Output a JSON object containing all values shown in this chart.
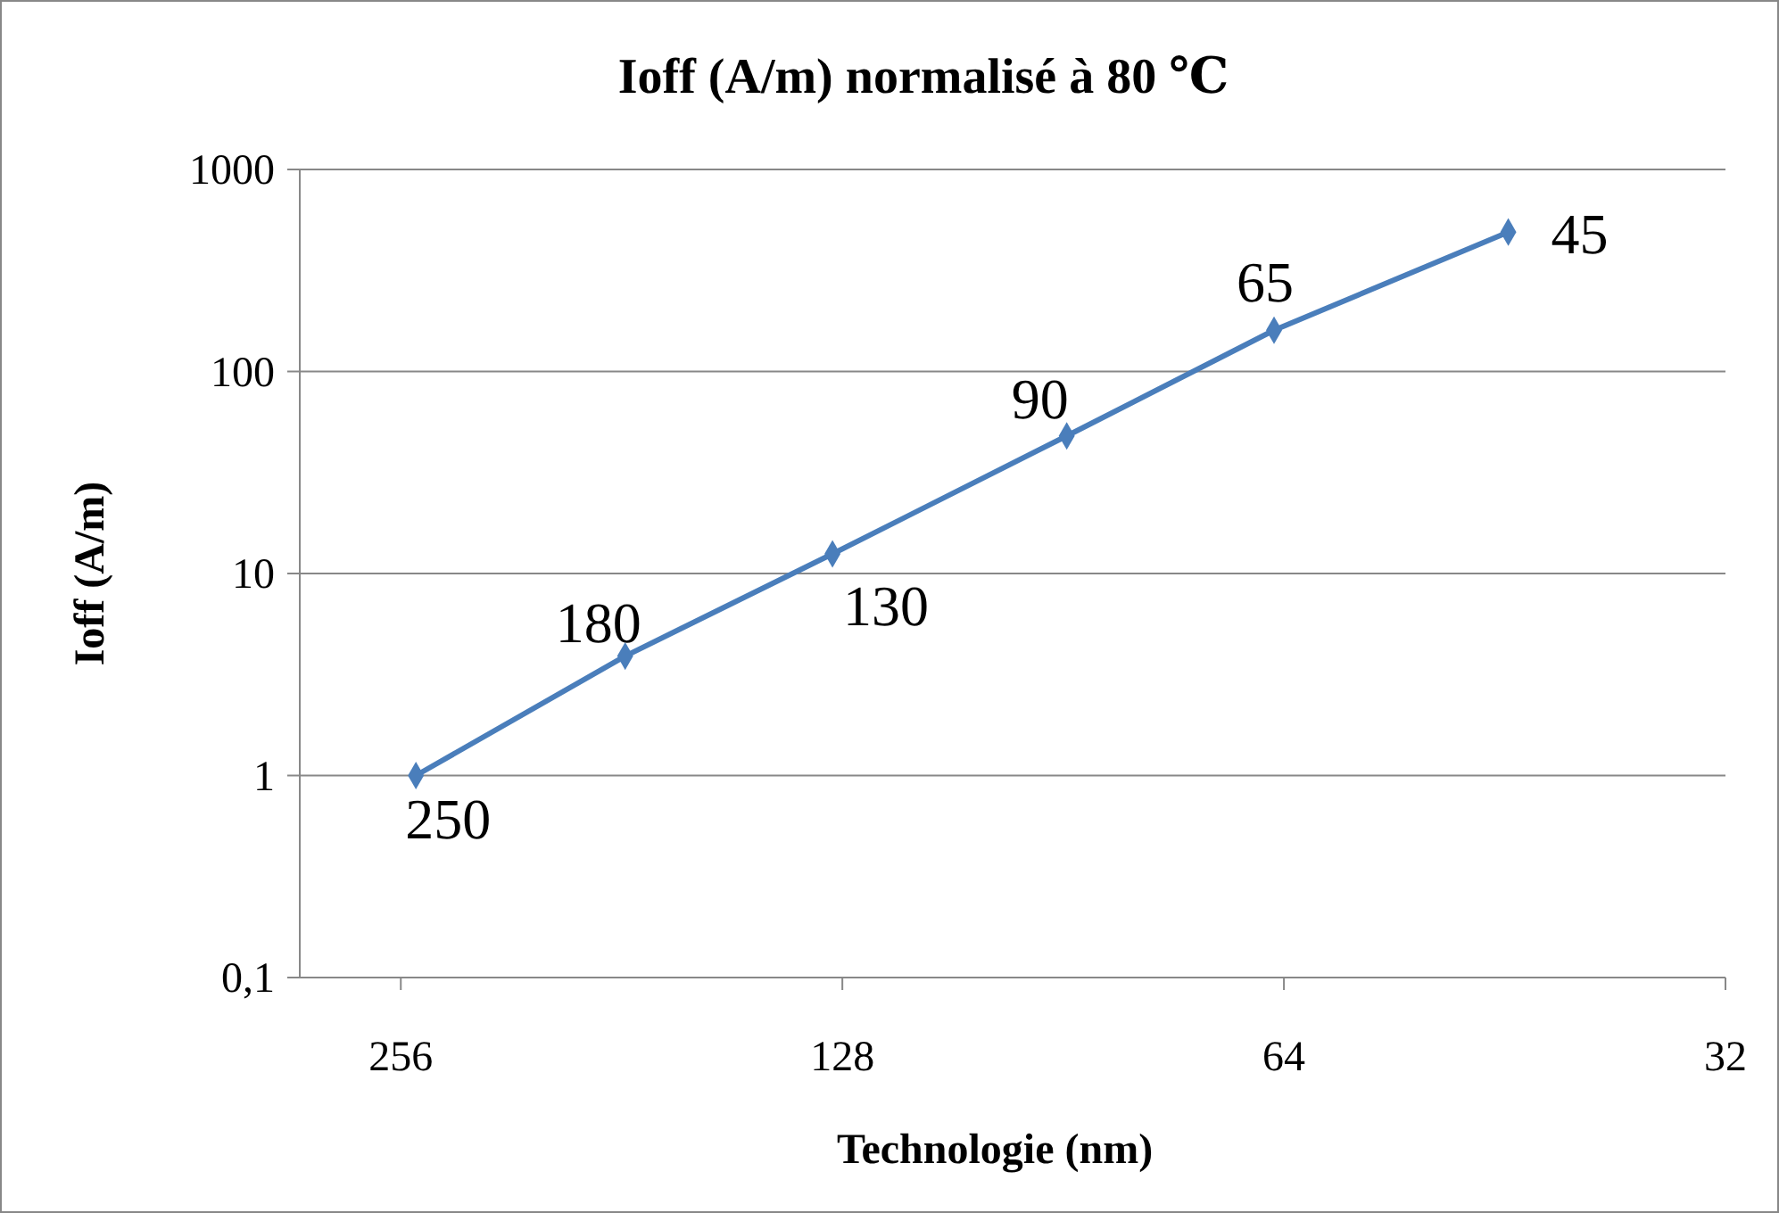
{
  "chart_data": {
    "type": "line",
    "title": "Ioff (A/m) normalisé à 80 ℃",
    "xlabel": "Technologie (nm)",
    "ylabel": "Ioff (A/m)",
    "x": [
      250,
      180,
      130,
      90,
      65,
      45
    ],
    "series": [
      {
        "color": "#4a7ebb",
        "values": [
          1.0,
          3.9,
          12.5,
          48,
          160,
          490
        ]
      }
    ],
    "annotations": [
      {
        "text": "250",
        "x": 250,
        "y": 1.0
      },
      {
        "text": "180",
        "x": 180,
        "y": 3.9
      },
      {
        "text": "130",
        "x": 130,
        "y": 12.5
      },
      {
        "text": "90",
        "x": 90,
        "y": 48
      },
      {
        "text": "65",
        "x": 65,
        "y": 160
      },
      {
        "text": "45",
        "x": 45,
        "y": 490
      }
    ],
    "xlim": [
      300,
      32
    ],
    "xticks": [
      256,
      128,
      64,
      32
    ],
    "ylim": [
      0.1,
      1000
    ],
    "yticks": [
      {
        "value": 0.1,
        "label": "0,1"
      },
      1,
      10,
      100,
      1000
    ],
    "log": "xy",
    "grid": "y",
    "marker": "diamond",
    "line_style": "solid"
  }
}
